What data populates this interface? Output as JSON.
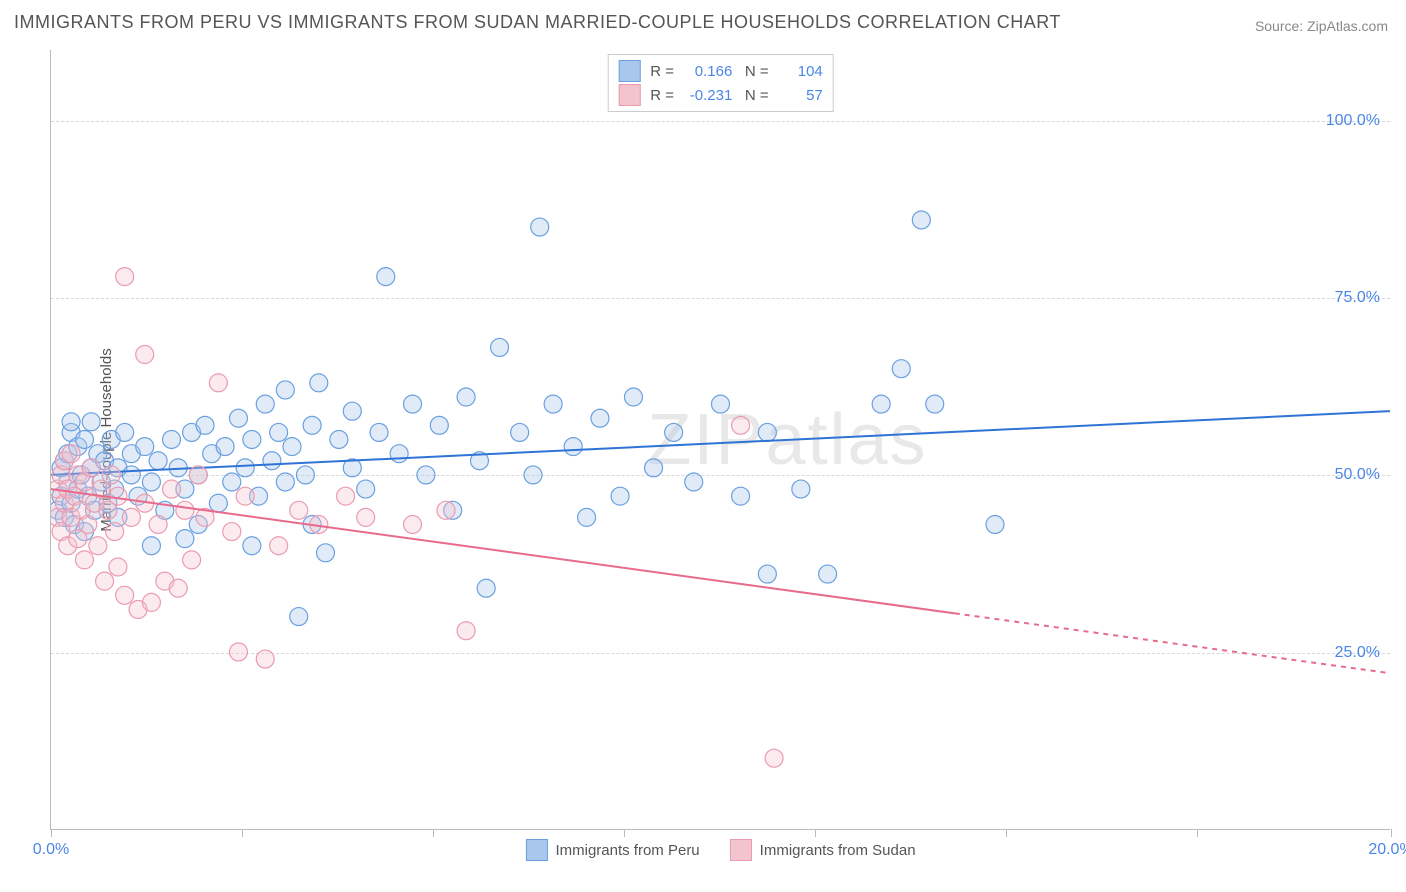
{
  "title": "IMMIGRANTS FROM PERU VS IMMIGRANTS FROM SUDAN MARRIED-COUPLE HOUSEHOLDS CORRELATION CHART",
  "source": "Source: ZipAtlas.com",
  "watermark": "ZIPatlas",
  "ylabel": "Married-couple Households",
  "chart": {
    "type": "scatter",
    "xlim": [
      0,
      20
    ],
    "ylim": [
      0,
      110
    ],
    "xtick_positions": [
      0,
      2.85,
      5.7,
      8.55,
      11.4,
      14.25,
      17.1,
      20
    ],
    "xtick_labels": {
      "0": "0.0%",
      "20": "20.0%"
    },
    "ytick_positions": [
      25,
      50,
      75,
      100
    ],
    "ytick_labels": [
      "25.0%",
      "50.0%",
      "75.0%",
      "100.0%"
    ],
    "background_color": "#ffffff",
    "grid_color": "#d8d8d8",
    "marker_radius": 9,
    "marker_fill_opacity": 0.35,
    "marker_stroke_width": 1.2,
    "line_width": 2
  },
  "series": [
    {
      "name": "Immigrants from Peru",
      "color_fill": "#a9c7ec",
      "color_stroke": "#6aa0e0",
      "line_color": "#2e74d6",
      "R": "0.166",
      "N": "104",
      "trend": {
        "x1": 0,
        "y1": 50,
        "x2": 20,
        "y2": 59,
        "dash_from_x": 20
      },
      "points": [
        [
          0.1,
          45
        ],
        [
          0.15,
          47
        ],
        [
          0.15,
          51
        ],
        [
          0.2,
          44
        ],
        [
          0.2,
          52
        ],
        [
          0.25,
          49
        ],
        [
          0.25,
          53
        ],
        [
          0.3,
          46
        ],
        [
          0.3,
          56
        ],
        [
          0.35,
          43
        ],
        [
          0.4,
          48
        ],
        [
          0.4,
          54
        ],
        [
          0.45,
          50
        ],
        [
          0.5,
          42
        ],
        [
          0.5,
          55
        ],
        [
          0.55,
          47
        ],
        [
          0.6,
          51
        ],
        [
          0.6,
          57.5
        ],
        [
          0.65,
          45
        ],
        [
          0.7,
          53
        ],
        [
          0.75,
          49
        ],
        [
          0.8,
          52
        ],
        [
          0.85,
          46
        ],
        [
          0.9,
          55
        ],
        [
          0.95,
          48
        ],
        [
          1.0,
          51
        ],
        [
          1.0,
          44
        ],
        [
          1.1,
          56
        ],
        [
          1.2,
          50
        ],
        [
          1.2,
          53
        ],
        [
          1.3,
          47
        ],
        [
          1.4,
          54
        ],
        [
          1.5,
          49
        ],
        [
          1.6,
          52
        ],
        [
          1.7,
          45
        ],
        [
          1.8,
          55
        ],
        [
          1.9,
          51
        ],
        [
          2.0,
          48
        ],
        [
          2.1,
          56
        ],
        [
          2.2,
          50
        ],
        [
          2.3,
          57
        ],
        [
          2.4,
          53
        ],
        [
          2.5,
          46
        ],
        [
          2.6,
          54
        ],
        [
          2.7,
          49
        ],
        [
          2.8,
          58
        ],
        [
          2.9,
          51
        ],
        [
          3.0,
          55
        ],
        [
          3.1,
          47
        ],
        [
          3.2,
          60
        ],
        [
          3.3,
          52
        ],
        [
          3.4,
          56
        ],
        [
          3.5,
          49
        ],
        [
          3.5,
          62
        ],
        [
          3.6,
          54
        ],
        [
          3.8,
          50
        ],
        [
          3.9,
          57
        ],
        [
          4.0,
          63
        ],
        [
          4.1,
          39
        ],
        [
          4.3,
          55
        ],
        [
          4.5,
          51
        ],
        [
          4.5,
          59
        ],
        [
          4.7,
          48
        ],
        [
          4.9,
          56
        ],
        [
          5.0,
          78
        ],
        [
          5.2,
          53
        ],
        [
          5.4,
          60
        ],
        [
          3.7,
          30
        ],
        [
          5.6,
          50
        ],
        [
          5.8,
          57
        ],
        [
          6.0,
          45
        ],
        [
          6.2,
          61
        ],
        [
          6.4,
          52
        ],
        [
          6.5,
          34
        ],
        [
          6.7,
          68
        ],
        [
          7.0,
          56
        ],
        [
          7.2,
          50
        ],
        [
          7.3,
          85
        ],
        [
          7.5,
          60
        ],
        [
          7.8,
          54
        ],
        [
          8.0,
          44
        ],
        [
          8.2,
          58
        ],
        [
          8.5,
          47
        ],
        [
          8.7,
          61
        ],
        [
          9.0,
          51
        ],
        [
          9.3,
          56
        ],
        [
          9.6,
          49
        ],
        [
          10.0,
          60
        ],
        [
          10.3,
          47
        ],
        [
          10.7,
          56
        ],
        [
          10.7,
          36
        ],
        [
          11.2,
          48
        ],
        [
          11.6,
          36
        ],
        [
          12.4,
          60
        ],
        [
          12.7,
          65
        ],
        [
          13.0,
          86
        ],
        [
          13.2,
          60
        ],
        [
          14.1,
          43
        ],
        [
          0.3,
          57.5
        ],
        [
          1.5,
          40
        ],
        [
          2.0,
          41
        ],
        [
          2.2,
          43
        ],
        [
          3.0,
          40
        ],
        [
          3.9,
          43
        ]
      ]
    },
    {
      "name": "Immigrants from Sudan",
      "color_fill": "#f3c3ce",
      "color_stroke": "#eb9bb0",
      "line_color": "#e86a8a",
      "R": "-0.231",
      "N": "57",
      "trend": {
        "x1": 0,
        "y1": 48,
        "x2": 20,
        "y2": 22,
        "dash_from_x": 13.5
      },
      "points": [
        [
          0.1,
          44
        ],
        [
          0.1,
          48
        ],
        [
          0.15,
          42
        ],
        [
          0.15,
          50
        ],
        [
          0.2,
          46
        ],
        [
          0.2,
          52
        ],
        [
          0.25,
          40
        ],
        [
          0.25,
          48
        ],
        [
          0.3,
          44
        ],
        [
          0.3,
          53
        ],
        [
          0.35,
          47
        ],
        [
          0.4,
          41
        ],
        [
          0.4,
          50
        ],
        [
          0.45,
          45
        ],
        [
          0.5,
          38
        ],
        [
          0.5,
          49
        ],
        [
          0.55,
          43
        ],
        [
          0.6,
          51
        ],
        [
          0.65,
          46
        ],
        [
          0.7,
          40
        ],
        [
          0.75,
          48
        ],
        [
          0.8,
          35
        ],
        [
          0.85,
          45
        ],
        [
          0.9,
          50
        ],
        [
          0.95,
          42
        ],
        [
          1.0,
          37
        ],
        [
          1.0,
          47
        ],
        [
          1.1,
          33
        ],
        [
          1.1,
          78
        ],
        [
          1.2,
          44
        ],
        [
          1.3,
          31
        ],
        [
          1.4,
          46
        ],
        [
          1.4,
          67
        ],
        [
          1.5,
          32
        ],
        [
          1.6,
          43
        ],
        [
          1.7,
          35
        ],
        [
          1.8,
          48
        ],
        [
          1.9,
          34
        ],
        [
          2.0,
          45
        ],
        [
          2.1,
          38
        ],
        [
          2.2,
          50
        ],
        [
          2.3,
          44
        ],
        [
          2.5,
          63
        ],
        [
          2.7,
          42
        ],
        [
          2.8,
          25
        ],
        [
          2.9,
          47
        ],
        [
          3.2,
          24
        ],
        [
          3.4,
          40
        ],
        [
          3.7,
          45
        ],
        [
          4.0,
          43
        ],
        [
          4.4,
          47
        ],
        [
          4.7,
          44
        ],
        [
          5.4,
          43
        ],
        [
          5.9,
          45
        ],
        [
          6.2,
          28
        ],
        [
          10.3,
          57
        ],
        [
          10.8,
          10
        ]
      ]
    }
  ],
  "bottom_legend": [
    {
      "label": "Immigrants from Peru",
      "fill": "#a9c7ec",
      "stroke": "#6aa0e0"
    },
    {
      "label": "Immigrants from Sudan",
      "fill": "#f3c3ce",
      "stroke": "#eb9bb0"
    }
  ]
}
